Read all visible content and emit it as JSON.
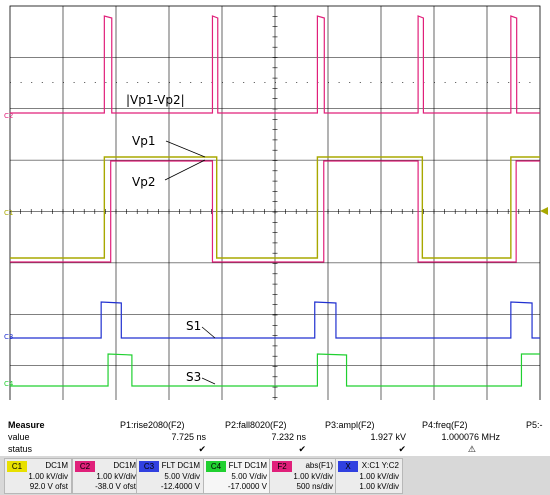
{
  "colors": {
    "ch1": "#a8a800",
    "ch2": "#e0207a",
    "ch3": "#2030d0",
    "ch4": "#20d030",
    "grid": "#000000"
  },
  "annotations": {
    "diff": "|Vp1-Vp2|",
    "vp1": "Vp1",
    "vp2": "Vp2",
    "s1": "S1",
    "s3": "S3"
  },
  "markers": {
    "m2": "C2",
    "m1": "C1",
    "m3": "C3",
    "m4": "C4"
  },
  "chart_data": {
    "type": "line",
    "grid": {
      "divisions_x": 10,
      "divisions_y": 8,
      "on": true
    },
    "x": [
      0,
      1.2,
      1.95,
      2.3,
      3.9,
      4.2,
      5.2,
      5.9,
      6.2,
      7.8,
      8.15,
      9.0,
      10
    ],
    "series": [
      {
        "name": "Vp1",
        "channel": "C1",
        "values": [
          -1,
          -1,
          1,
          1,
          1,
          -1,
          -1,
          1,
          1,
          1,
          -1,
          -1,
          1
        ]
      },
      {
        "name": "Vp2",
        "channel": "C2",
        "values": [
          -1,
          -1,
          1,
          1,
          1,
          -1,
          -1,
          1,
          1,
          1,
          -1,
          -1,
          1
        ]
      },
      {
        "name": "|Vp1-Vp2|",
        "channel": "F2",
        "values": [
          0,
          1,
          0,
          0,
          1,
          0,
          0,
          1,
          0,
          0,
          1,
          0,
          0
        ]
      },
      {
        "name": "S1",
        "channel": "C3",
        "values": [
          0,
          1,
          0,
          0,
          0,
          1,
          0,
          0,
          0,
          1,
          0,
          0,
          0
        ]
      },
      {
        "name": "S3",
        "channel": "C4",
        "values": [
          0,
          0,
          1,
          0,
          0,
          0,
          1,
          0,
          0,
          0,
          1,
          0,
          0
        ]
      }
    ]
  },
  "measure": {
    "labels": {
      "measure": "Measure",
      "value": "value",
      "status": "status"
    },
    "params": [
      {
        "name": "P1:rise2080(F2)",
        "value": "7.725 ns",
        "status": "✔"
      },
      {
        "name": "P2:fall8020(F2)",
        "value": "7.232 ns",
        "status": "✔"
      },
      {
        "name": "P3:ampl(F2)",
        "value": "1.927 kV",
        "status": "✔"
      },
      {
        "name": "P4:freq(F2)",
        "value": "1.000076 MHz",
        "status": "⚠"
      },
      {
        "name": "P5:-",
        "value": "",
        "status": ""
      }
    ]
  },
  "channels": [
    {
      "tag": "C1",
      "mode": "DC1M",
      "scale": "1.00 kV/div",
      "offset": "92.0 V ofst",
      "color": "#e8e000"
    },
    {
      "tag": "C2",
      "mode": "DC1M",
      "scale": "1.00 kV/div",
      "offset": "-38.0 V ofst",
      "color": "#e0207a"
    },
    {
      "tag": "C3",
      "mode": "FLT DC1M",
      "scale": "5.00 V/div",
      "offset": "-12.4000 V",
      "color": "#3040e0"
    },
    {
      "tag": "C4",
      "mode": "FLT DC1M",
      "scale": "5.00 V/div",
      "offset": "-17.0000 V",
      "color": "#20d030"
    },
    {
      "tag": "F2",
      "mode": "abs(F1)",
      "scale": "1.00 kV/div",
      "offset": "500 ns/div",
      "color": "#e0207a"
    },
    {
      "tag": "X",
      "mode": "X:C1 Y:C2",
      "scale": "1.00 kV/div",
      "offset": "1.00 kV/div",
      "color": "#3040e0"
    }
  ]
}
